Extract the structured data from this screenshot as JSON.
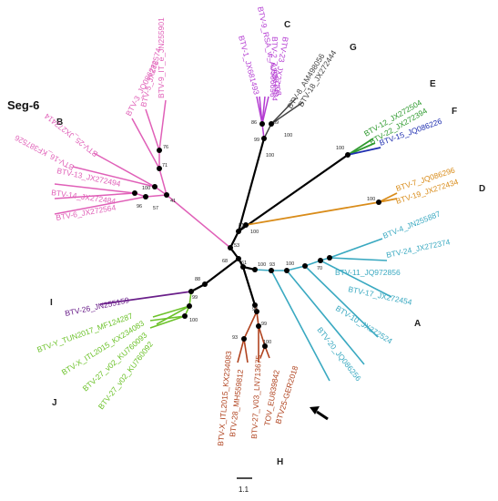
{
  "title": "Seg-6",
  "scale_label": "1.1",
  "colors": {
    "A": "#3aa9c1",
    "B": "#e060b8",
    "C": "#b43cd2",
    "D": "#d98c1a",
    "E": "#2e9a2e",
    "F": "#1f2fb0",
    "G": "#444444",
    "H": "#b0431f",
    "I": "#6a1f8a",
    "J": "#6cc22a",
    "trunk": "#000000"
  },
  "clade_labels": [
    "A",
    "B",
    "C",
    "D",
    "E",
    "F",
    "G",
    "H",
    "I",
    "J"
  ],
  "taxa": {
    "A": [
      "BTV-4_JN255887",
      "BTV-24_JX272374",
      "BTV-11_JQ972856",
      "BTV-17_JX272454",
      "BTV-10_JX272524",
      "BTV-20_JQ086256"
    ],
    "B": [
      "BTV-9_IT_e_JN255901",
      "BTV-5_JX272574",
      "BTV-3_JQ086286",
      "BTV-25_JX272414",
      "BTV-16_KF387526",
      "BTV-13_JX272494",
      "BTV-14_JX272484",
      "BTV-6_JX272564"
    ],
    "C": [
      "BTV-1_JX681493",
      "BTV-9_RSA_w_AJ586708",
      "BTV-2_AJ586696",
      "BTV-23_JX272404"
    ],
    "D": [
      "BTV-7_JQ086296",
      "BTV-19_JX272434"
    ],
    "E": [
      "BTV-12_JX272504",
      "BTV-22_JX272394"
    ],
    "F": [
      "BTV-15_JQ086226"
    ],
    "G": [
      "BTV-8_AM498056",
      "BTV-18_JX272444"
    ],
    "H": [
      "BTV-X_ITL2015_KX234083",
      "BTV-28_MH559812",
      "BTV-27_V03_LN713675",
      "TOV_EU839842",
      "BTV25-GER2018"
    ],
    "I": [
      "BTV-26_JN255159"
    ],
    "J": [
      "BTV-Y_TUN2017_MF124287",
      "BTV-X_ITL2015_KX234083",
      "BTV-27_v02_KU760093",
      "BTV-27_v02_KU760092"
    ]
  },
  "bootstrap": [
    "76",
    "71",
    "41",
    "100",
    "96",
    "57",
    "86",
    "89",
    "99",
    "100",
    "100",
    "100",
    "100",
    "100",
    "93",
    "100",
    "70",
    "61",
    "88",
    "68",
    "53",
    "81",
    "100",
    "99",
    "100",
    "98",
    "99",
    "100",
    "93"
  ]
}
